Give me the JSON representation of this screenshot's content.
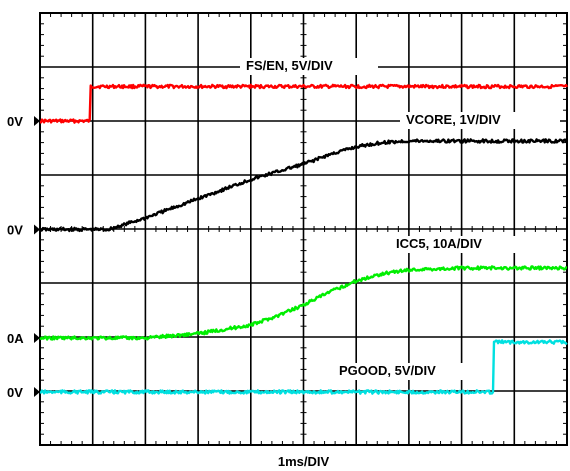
{
  "chart_data": {
    "type": "line",
    "xlabel": "1ms/DIV",
    "x_unit": "ms",
    "xlim": [
      0,
      10
    ],
    "grid": true,
    "divisions": {
      "x": 10,
      "y": 8
    },
    "zero_markers": [
      {
        "text": "0V",
        "channel": "FS/EN"
      },
      {
        "text": "0V",
        "channel": "VCORE"
      },
      {
        "text": "0A",
        "channel": "ICC5"
      },
      {
        "text": "0V",
        "channel": "PGOOD"
      }
    ],
    "series": [
      {
        "name": "FS/EN, 5V/DIV",
        "color": "#ff0000",
        "scale": "5V/DIV",
        "unit": "V",
        "x": [
          0,
          0.95,
          0.96,
          10
        ],
        "y": [
          0,
          0,
          6.6,
          6.6
        ]
      },
      {
        "name": "VCORE, 1V/DIV",
        "color": "#000000",
        "scale": "1V/DIV",
        "unit": "V",
        "x": [
          0,
          1.3,
          2,
          3,
          4,
          5,
          5.5,
          6,
          6.5,
          7,
          8,
          9,
          10
        ],
        "y": [
          0,
          0,
          0.3,
          0.8,
          1.3,
          1.7,
          1.95,
          2.15,
          2.26,
          2.3,
          2.3,
          2.3,
          2.3
        ]
      },
      {
        "name": "ICC5, 10A/DIV",
        "color": "#00ee00",
        "scale": "10A/DIV",
        "unit": "A",
        "x": [
          0,
          2,
          3,
          4,
          4.5,
          5,
          5.5,
          6,
          6.5,
          7,
          8,
          9,
          10
        ],
        "y": [
          0,
          0,
          1.2,
          3.5,
          6,
          9,
          12.5,
          15.5,
          17.5,
          18.5,
          19,
          19,
          19
        ]
      },
      {
        "name": "PGOOD, 5V/DIV",
        "color": "#00e0e0",
        "scale": "5V/DIV",
        "unit": "V",
        "x": [
          0,
          8.6,
          8.61,
          10
        ],
        "y": [
          0,
          0,
          4.8,
          4.8
        ]
      }
    ]
  }
}
